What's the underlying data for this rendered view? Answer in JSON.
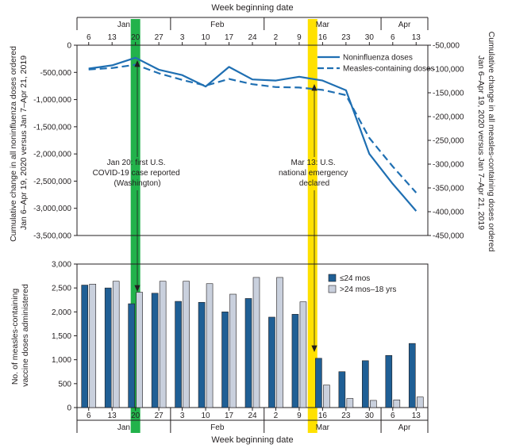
{
  "figure": {
    "top_axis_title": "Week beginning date",
    "bottom_axis_title": "Week beginning date",
    "months": [
      "Jan",
      "Feb",
      "Mar",
      "Apr"
    ],
    "colors": {
      "line": "#1f6fb2",
      "bar_young": "#1f5f95",
      "bar_old": "#c9d0dd",
      "highlight_green": "#22b24b",
      "highlight_yellow": "#ffe100",
      "axis": "#231f20"
    }
  },
  "annotations": {
    "jan20": "Jan 20: first U.S. COVID-19 case reported (Washington)",
    "jan20_lines": [
      "Jan 20: first U.S.",
      "COVID-19 case reported",
      "(Washington)"
    ],
    "mar13": "Mar 13: U.S. national emergency declared",
    "mar13_lines": [
      "Mar 13: U.S.",
      "national emergency",
      "declared"
    ]
  },
  "chart_data": [
    {
      "type": "line",
      "x": [
        "6",
        "13",
        "20",
        "27",
        "3",
        "10",
        "17",
        "24",
        "2",
        "9",
        "16",
        "23",
        "30",
        "6",
        "13"
      ],
      "x_months": [
        "Jan",
        "Jan",
        "Jan",
        "Jan",
        "Feb",
        "Feb",
        "Feb",
        "Feb",
        "Mar",
        "Mar",
        "Mar",
        "Mar",
        "Mar",
        "Apr",
        "Apr"
      ],
      "ylabel_left": "Cumulative change in all noninfluenza doses ordered Jan 6–Apr 19, 2020 versus Jan 7–Apr 21, 2019",
      "ylabel_left_lines": [
        "Cumulative change in all noninfluenza doses ordered",
        "Jan 6–Apr 19, 2020 versus Jan 7–Apr 21, 2019"
      ],
      "ylabel_right": "Cumulative change in all measles-containing doses ordered Jan 6–Apr 19, 2020 versus Jan 7–Apr 21, 2019",
      "ylabel_right_lines": [
        "Cumulative change in all measles-containing doses ordered",
        "Jan 6–Apr 19, 2020 versus Jan 7–Apr 21, 2019"
      ],
      "ylim_left": [
        -3500000,
        0
      ],
      "ylim_right": [
        -450000,
        -50000
      ],
      "yticks_left": [
        "0",
        "-500,000",
        "-1,000,000",
        "-1,500,000",
        "-2,000,000",
        "-2,500,000",
        "-3,000,000",
        "-3,500,000"
      ],
      "yticks_right": [
        "-50,000",
        "-100,000",
        "-150,000",
        "-200,000",
        "-250,000",
        "-300,000",
        "-350,000",
        "-400,000",
        "-450,000"
      ],
      "legend_position": "top-right",
      "series": [
        {
          "name": "Noninfluenza doses",
          "axis": "left",
          "style": "solid",
          "values": [
            -430000,
            -370000,
            -230000,
            -450000,
            -550000,
            -760000,
            -400000,
            -630000,
            -650000,
            -580000,
            -650000,
            -830000,
            -2000000,
            -2550000,
            -3050000
          ]
        },
        {
          "name": "Measles-containing doses",
          "axis": "right",
          "style": "dashed",
          "values": [
            -101000,
            -98000,
            -91000,
            -109000,
            -123000,
            -135000,
            -121000,
            -132000,
            -138000,
            -139000,
            -144000,
            -155000,
            -245000,
            -305000,
            -360000
          ]
        }
      ]
    },
    {
      "type": "bar",
      "categories": [
        "6",
        "13",
        "20",
        "27",
        "3",
        "10",
        "17",
        "24",
        "2",
        "9",
        "16",
        "23",
        "30",
        "6",
        "13"
      ],
      "ylabel": "No. of measles-containing vaccine doses administered",
      "ylabel_lines": [
        "No. of measles-containing",
        "vaccine doses administered"
      ],
      "ylim": [
        0,
        3000
      ],
      "yticks": [
        "0",
        "500",
        "1,000",
        "1,500",
        "2,000",
        "2,500",
        "3,000"
      ],
      "legend_position": "top-right",
      "series": [
        {
          "name": "≤24 mos",
          "values": [
            2560,
            2500,
            2170,
            2390,
            2220,
            2200,
            2000,
            2280,
            1890,
            1950,
            1030,
            750,
            980,
            1090,
            1340
          ]
        },
        {
          "name": ">24 mos–18 yrs",
          "values": [
            2580,
            2640,
            2410,
            2640,
            2640,
            2590,
            2370,
            2720,
            2720,
            2210,
            470,
            190,
            150,
            160,
            220
          ]
        }
      ]
    }
  ]
}
